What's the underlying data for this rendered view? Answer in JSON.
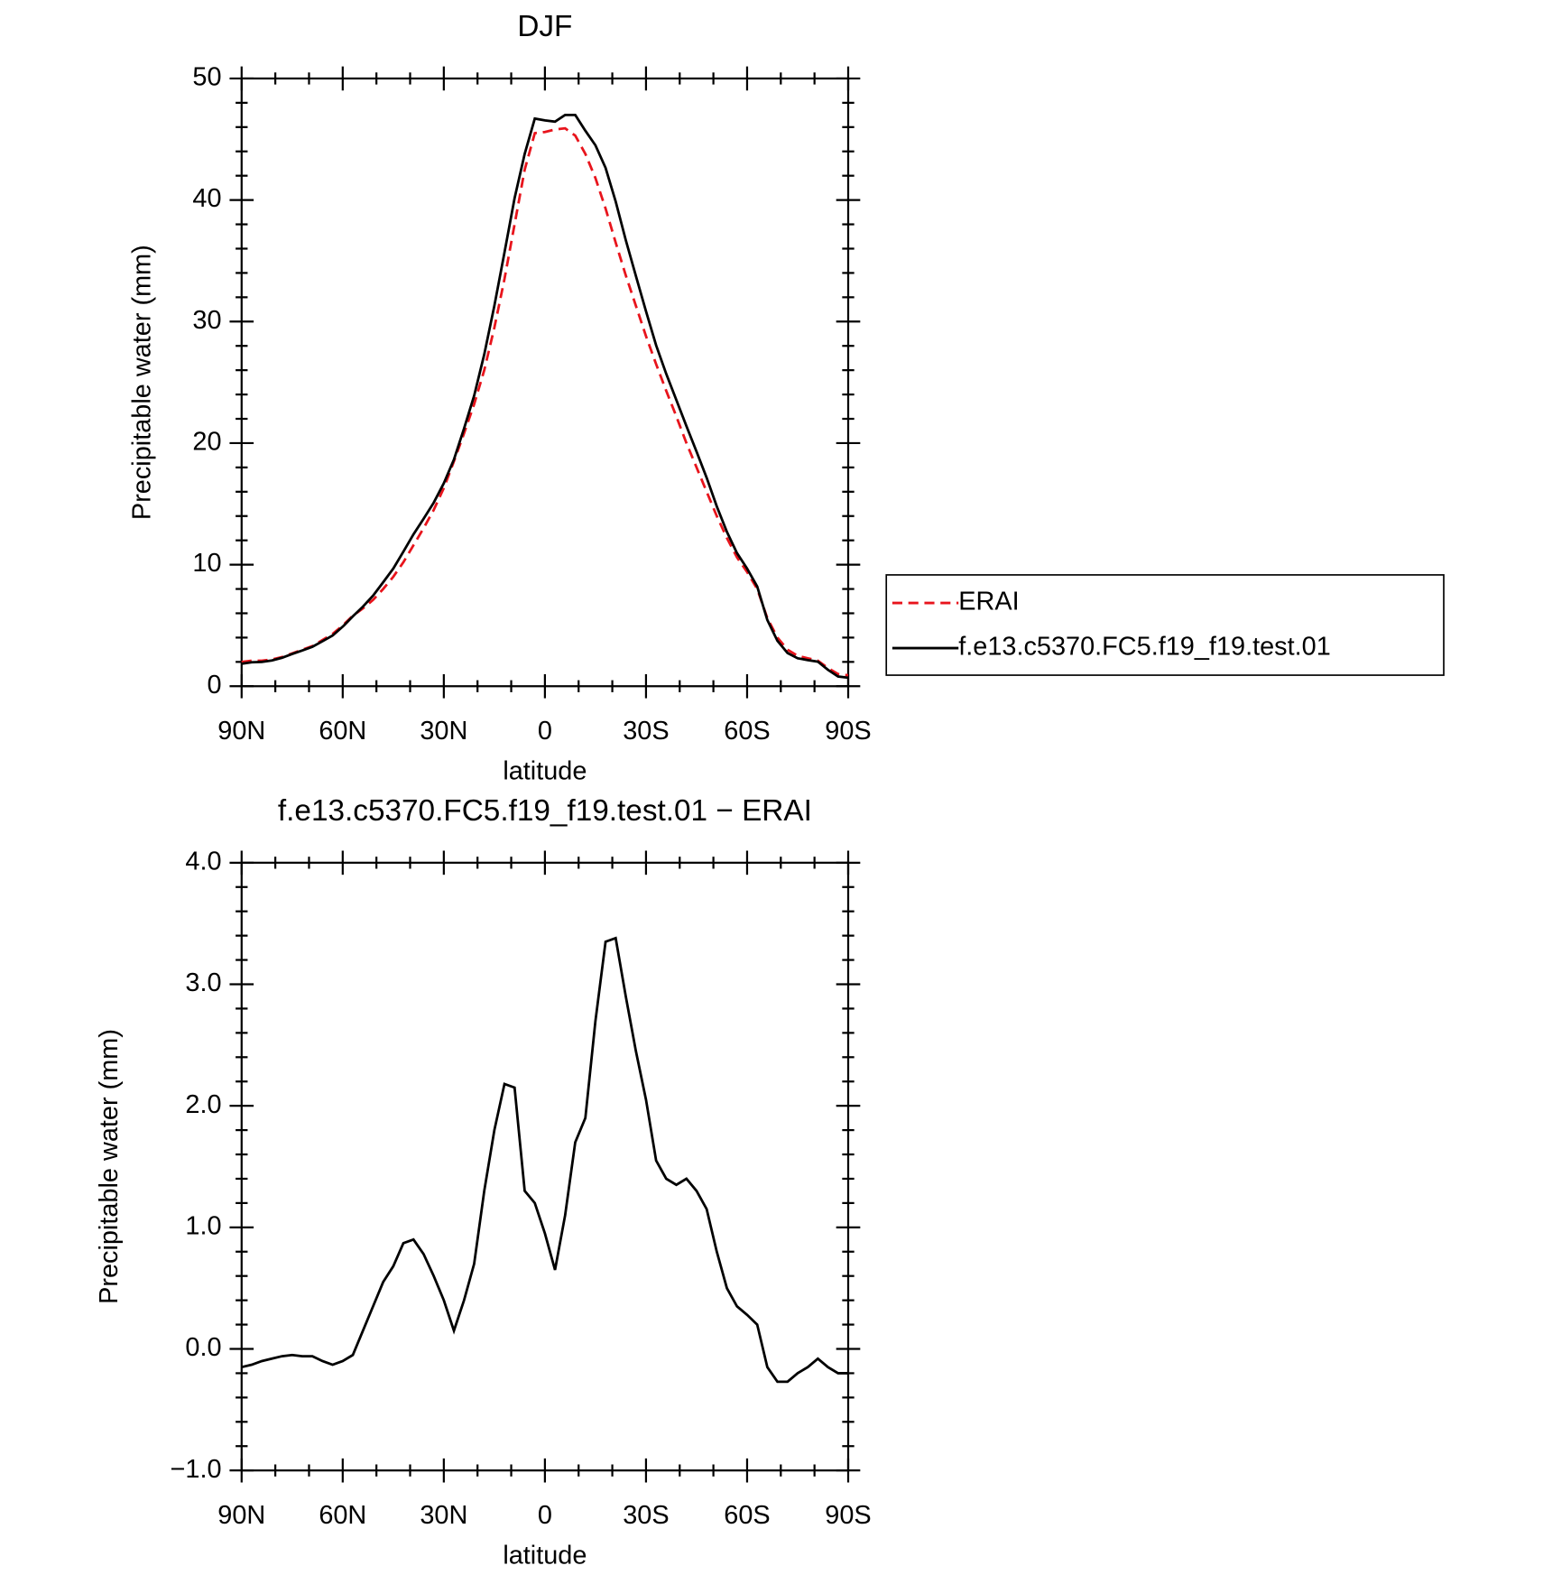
{
  "chart_data": [
    {
      "type": "line",
      "title": "DJF",
      "xlabel": "latitude",
      "ylabel": "Precipitable water (mm)",
      "x": [
        90,
        87,
        84,
        81,
        78,
        75,
        72,
        69,
        66,
        63,
        60,
        57,
        54,
        51,
        48,
        45,
        42,
        39,
        36,
        33,
        30,
        27,
        24,
        21,
        18,
        15,
        12,
        9,
        6,
        3,
        0,
        -3,
        -6,
        -9,
        -12,
        -15,
        -18,
        -21,
        -24,
        -27,
        -30,
        -33,
        -36,
        -39,
        -42,
        -45,
        -48,
        -51,
        -54,
        -57,
        -60,
        -63,
        -66,
        -69,
        -72,
        -75,
        -78,
        -81,
        -84,
        -87,
        -90
      ],
      "xlim": [
        90,
        -90
      ],
      "xticks": [
        {
          "value": 90,
          "label": "90N"
        },
        {
          "value": 60,
          "label": "60N"
        },
        {
          "value": 30,
          "label": "30N"
        },
        0,
        {
          "value": -30,
          "label": "30S"
        },
        {
          "value": -60,
          "label": "60S"
        },
        {
          "value": -90,
          "label": "90S"
        }
      ],
      "ylim": [
        0,
        50
      ],
      "yticks": [
        0,
        10,
        20,
        30,
        40,
        50
      ],
      "legend": "right",
      "series": [
        {
          "name": "ERAI",
          "color": "#e8141c",
          "style": "dashed",
          "values": [
            2.0,
            2.1,
            2.1,
            2.2,
            2.4,
            2.7,
            3.0,
            3.3,
            3.8,
            4.3,
            5.0,
            5.8,
            6.4,
            7.1,
            8.0,
            9.0,
            10.2,
            11.6,
            13.0,
            14.5,
            16.3,
            18.5,
            20.8,
            23.2,
            26.0,
            29.5,
            33.5,
            38.0,
            42.5,
            45.5,
            45.6,
            45.8,
            45.9,
            45.3,
            43.8,
            41.8,
            39.3,
            36.5,
            33.8,
            31.3,
            28.8,
            26.5,
            24.3,
            22.2,
            20.0,
            18.0,
            16.0,
            14.0,
            12.2,
            10.6,
            9.4,
            8.0,
            5.6,
            4.0,
            3.0,
            2.5,
            2.3,
            2.1,
            1.5,
            1.0,
            0.9
          ]
        },
        {
          "name": "f.e13.c5370.FC5.f19_f19.test.01",
          "color": "#000000",
          "style": "solid",
          "values": [
            1.85,
            1.97,
            2.0,
            2.12,
            2.34,
            2.65,
            2.94,
            3.24,
            3.7,
            4.17,
            4.9,
            5.75,
            6.55,
            7.45,
            8.55,
            9.68,
            11.07,
            12.5,
            13.78,
            15.1,
            16.7,
            18.65,
            21.2,
            23.9,
            27.3,
            31.3,
            35.68,
            40.15,
            43.8,
            46.7,
            46.55,
            46.45,
            47.0,
            47.0,
            45.7,
            44.5,
            42.65,
            39.88,
            36.7,
            33.75,
            30.85,
            28.05,
            25.7,
            23.55,
            21.4,
            19.3,
            17.15,
            14.8,
            12.7,
            10.95,
            9.68,
            8.2,
            5.45,
            3.73,
            2.73,
            2.3,
            2.15,
            2.02,
            1.35,
            0.8,
            0.7
          ]
        }
      ]
    },
    {
      "type": "line",
      "title": "f.e13.c5370.FC5.f19_f19.test.01 − ERAI",
      "xlabel": "latitude",
      "ylabel": "Precipitable water (mm)",
      "x": [
        90,
        87,
        84,
        81,
        78,
        75,
        72,
        69,
        66,
        63,
        60,
        57,
        54,
        51,
        48,
        45,
        42,
        39,
        36,
        33,
        30,
        27,
        24,
        21,
        18,
        15,
        12,
        9,
        6,
        3,
        0,
        -3,
        -6,
        -9,
        -12,
        -15,
        -18,
        -21,
        -24,
        -27,
        -30,
        -33,
        -36,
        -39,
        -42,
        -45,
        -48,
        -51,
        -54,
        -57,
        -60,
        -63,
        -66,
        -69,
        -72,
        -75,
        -78,
        -81,
        -84,
        -87,
        -90
      ],
      "xlim": [
        90,
        -90
      ],
      "xticks": [
        {
          "value": 90,
          "label": "90N"
        },
        {
          "value": 60,
          "label": "60N"
        },
        {
          "value": 30,
          "label": "30N"
        },
        0,
        {
          "value": -30,
          "label": "30S"
        },
        {
          "value": -60,
          "label": "60S"
        },
        {
          "value": -90,
          "label": "90S"
        }
      ],
      "ylim": [
        -1,
        4
      ],
      "yticks": [
        {
          "value": -1,
          "label": "−1.0"
        },
        {
          "value": 0,
          "label": "0.0"
        },
        {
          "value": 1,
          "label": "1.0"
        },
        {
          "value": 2,
          "label": "2.0"
        },
        {
          "value": 3,
          "label": "3.0"
        },
        {
          "value": 4,
          "label": "4.0"
        }
      ],
      "series": [
        {
          "color": "#000000",
          "style": "solid",
          "values": [
            -0.15,
            -0.13,
            -0.1,
            -0.08,
            -0.06,
            -0.05,
            -0.06,
            -0.06,
            -0.1,
            -0.13,
            -0.1,
            -0.05,
            0.15,
            0.35,
            0.55,
            0.68,
            0.87,
            0.9,
            0.78,
            0.6,
            0.4,
            0.15,
            0.4,
            0.7,
            1.3,
            1.8,
            2.18,
            2.15,
            1.3,
            1.2,
            0.95,
            0.65,
            1.1,
            1.7,
            1.9,
            2.7,
            3.35,
            3.38,
            2.9,
            2.45,
            2.05,
            1.55,
            1.4,
            1.35,
            1.4,
            1.3,
            1.15,
            0.8,
            0.5,
            0.35,
            0.28,
            0.2,
            -0.15,
            -0.27,
            -0.27,
            -0.2,
            -0.15,
            -0.08,
            -0.15,
            -0.2,
            -0.2
          ]
        }
      ]
    }
  ]
}
